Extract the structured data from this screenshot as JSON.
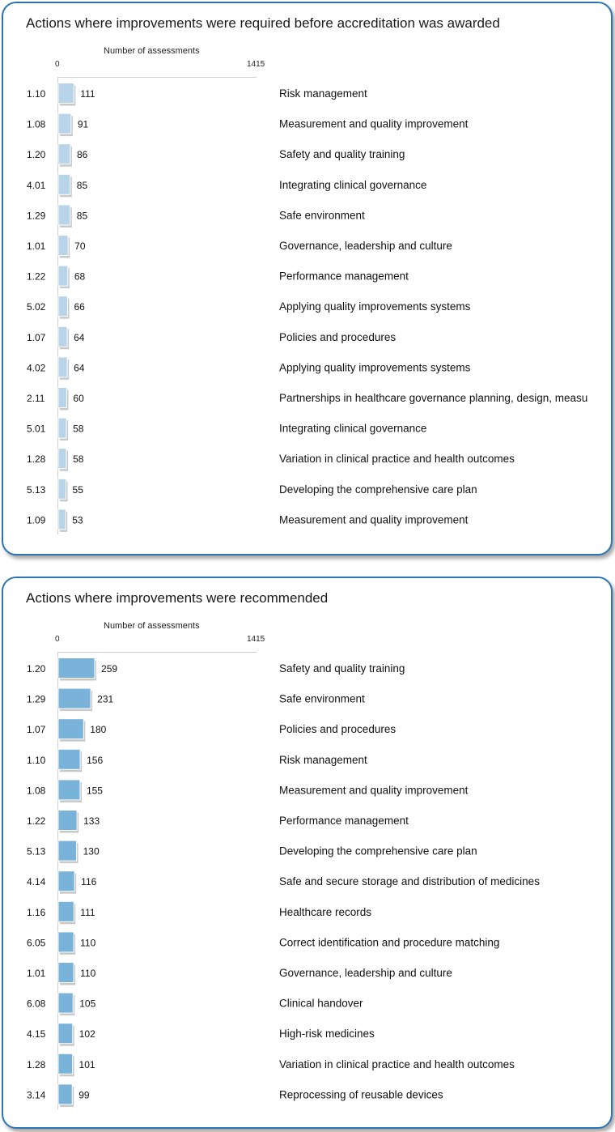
{
  "chart_data": [
    {
      "type": "bar",
      "orientation": "horizontal",
      "title": "Actions where improvements were required before accreditation was awarded",
      "xlabel": "Number  of assessments",
      "xlim": [
        0,
        1415
      ],
      "x_ticks": [
        "0",
        "1415"
      ],
      "bar_color": "#b8d4e8",
      "codes": [
        "1.10",
        "1.08",
        "1.20",
        "4.01",
        "1.29",
        "1.01",
        "1.22",
        "5.02",
        "1.07",
        "4.02",
        "2.11",
        "5.01",
        "1.28",
        "5.13",
        "1.09"
      ],
      "values": [
        111,
        91,
        86,
        85,
        85,
        70,
        68,
        66,
        64,
        64,
        60,
        58,
        58,
        55,
        53
      ],
      "categories": [
        "Risk management",
        "Measurement  and quality improvement",
        "Safety and quality training",
        "Integrating clinical governance",
        "Safe environment",
        "Governance,  leadership and culture",
        "Performance  management",
        "Applying quality improvements  systems",
        "Policies and procedures",
        "Applying quality improvements  systems",
        "Partnerships in healthcare governance planning, design, measu",
        "Integrating clinical governance",
        "Variation in clinical practice and health outcomes",
        "Developing the comprehensive  care plan",
        "Measurement  and quality improvement"
      ]
    },
    {
      "type": "bar",
      "orientation": "horizontal",
      "title": "Actions where improvements were recommended",
      "xlabel": "Number  of assessments",
      "xlim": [
        0,
        1415
      ],
      "x_ticks": [
        "0",
        "1415"
      ],
      "bar_color": "#7ab3d9",
      "codes": [
        "1.20",
        "1.29",
        "1.07",
        "1.10",
        "1.08",
        "1.22",
        "5.13",
        "4.14",
        "1.16",
        "6.05",
        "1.01",
        "6.08",
        "4.15",
        "1.28",
        "3.14"
      ],
      "values": [
        259,
        231,
        180,
        156,
        155,
        133,
        130,
        116,
        111,
        110,
        110,
        105,
        102,
        101,
        99
      ],
      "categories": [
        "Safety and quality training",
        "Safe environment",
        "Policies and procedures",
        "Risk management",
        "Measurement  and quality improvement",
        "Performance  management",
        "Developing the comprehensive  care plan",
        "Safe and secure storage and distribution of medicines",
        "Healthcare records",
        "Correct identification and procedure  matching",
        "Governance,  leadership and culture",
        "Clinical handover",
        "High-risk medicines",
        "Variation in clinical practice and health outcomes",
        "Reprocessing of reusable devices"
      ]
    }
  ]
}
